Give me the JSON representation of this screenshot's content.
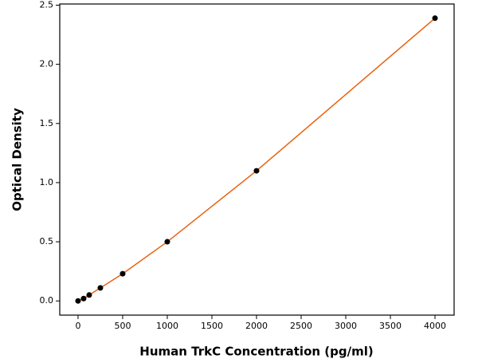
{
  "chart_data": {
    "type": "scatter",
    "x_label": "Human TrkC Concentration (pg/ml)",
    "y_label": "Optical Density",
    "series": [
      {
        "x": [
          0,
          62.5,
          125,
          250,
          500,
          1000,
          2000,
          4000
        ],
        "values": [
          0,
          0.02,
          0.05,
          0.11,
          0.23,
          0.5,
          1.1,
          2.39
        ],
        "color": "#000000",
        "line_color": "#e8620f"
      }
    ],
    "xlim": [
      -205,
      4214
    ],
    "ylim": [
      -0.12,
      2.51
    ],
    "xticks": [
      0,
      500,
      1000,
      1500,
      2000,
      2500,
      3000,
      3500,
      4000
    ],
    "yticks": [
      {
        "value": 0,
        "label": "0.0"
      },
      0.5,
      {
        "value": 1,
        "label": "1.0"
      },
      1.5,
      {
        "value": 2,
        "label": "2.0"
      },
      2.5
    ],
    "grid": false
  }
}
